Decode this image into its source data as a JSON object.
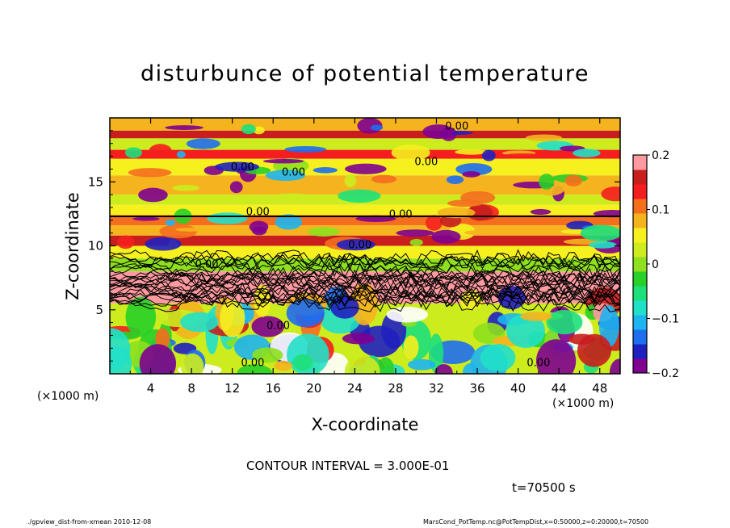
{
  "chart_data": {
    "type": "heatmap",
    "title": "disturbunce of potential temperature",
    "xlabel": "X-coordinate",
    "ylabel": "Z-coordinate",
    "x_unit": "(×1000 m)",
    "y_unit": "(×1000 m)",
    "xlim": [
      0,
      50
    ],
    "ylim": [
      0,
      20
    ],
    "x_ticks": [
      4,
      8,
      12,
      16,
      20,
      24,
      28,
      32,
      36,
      40,
      44,
      48
    ],
    "y_ticks": [
      5,
      10,
      15
    ],
    "colorbar": {
      "range": [
        -0.2,
        0.2
      ],
      "ticks": [
        {
          "value": 0.2,
          "label": "0.2"
        },
        {
          "value": 0.1,
          "label": "0.1"
        },
        {
          "value": 0,
          "label": "0"
        },
        {
          "value": -0.1,
          "label": "−0.1"
        },
        {
          "value": -0.2,
          "label": "−0.2"
        }
      ],
      "colors": [
        "#800090",
        "#2020c0",
        "#1e6ef0",
        "#1eb4f0",
        "#21e0c8",
        "#1ee07a",
        "#28d028",
        "#8ee01e",
        "#ccec1e",
        "#f5f01e",
        "#f5b41e",
        "#f56e1e",
        "#f51e1e",
        "#c81e1e",
        "#ff9aa0"
      ]
    },
    "contour_interval": "CONTOUR INTERVAL = 3.000E-01",
    "contour_labels": [
      {
        "x": 14.5,
        "z": 12.4,
        "text": "0.00"
      },
      {
        "x": 28.5,
        "z": 12.2,
        "text": "0.00"
      },
      {
        "x": 13,
        "z": 15.9,
        "text": "0.00"
      },
      {
        "x": 18,
        "z": 15.5,
        "text": "0.00"
      },
      {
        "x": 31,
        "z": 16.3,
        "text": "0.00"
      },
      {
        "x": 34,
        "z": 19.1,
        "text": "0.00"
      },
      {
        "x": 24.5,
        "z": 9.8,
        "text": "0.00"
      },
      {
        "x": 9.5,
        "z": 8.3,
        "text": "0.00"
      },
      {
        "x": 16.5,
        "z": 3.5,
        "text": "0.00"
      },
      {
        "x": 42,
        "z": 0.6,
        "text": "0.00"
      },
      {
        "x": 14,
        "z": 0.6,
        "text": "0.00"
      }
    ],
    "field_bands": [
      {
        "z0": 19.0,
        "z1": 20.0,
        "value": 0.08
      },
      {
        "z0": 18.4,
        "z1": 19.0,
        "value": 0.16
      },
      {
        "z0": 17.5,
        "z1": 18.4,
        "value": 0.03
      },
      {
        "z0": 16.8,
        "z1": 17.5,
        "value": 0.14
      },
      {
        "z0": 15.5,
        "z1": 16.8,
        "value": 0.04
      },
      {
        "z0": 14.0,
        "z1": 15.5,
        "value": 0.08
      },
      {
        "z0": 13.2,
        "z1": 14.0,
        "value": 0.02
      },
      {
        "z0": 12.4,
        "z1": 13.2,
        "value": 0.05
      },
      {
        "z0": 11.6,
        "z1": 12.4,
        "value": 0.12
      },
      {
        "z0": 10.8,
        "z1": 11.6,
        "value": 0.08
      },
      {
        "z0": 10.0,
        "z1": 10.8,
        "value": 0.17
      },
      {
        "z0": 9.0,
        "z1": 10.0,
        "value": 0.06
      },
      {
        "z0": 8.0,
        "z1": 9.0,
        "value": 0.0
      },
      {
        "z0": 5.5,
        "z1": 8.0,
        "value": 0.2
      },
      {
        "z0": 0.0,
        "z1": 5.5,
        "value": 0.02
      }
    ],
    "time_label": "t=70500 s"
  },
  "footer": {
    "left": "./gpview_dist-from-xmean   2010-12-08",
    "right": "MarsCond_PotTemp.nc@PotTempDist,x=0:50000,z=0:20000,t=70500"
  }
}
